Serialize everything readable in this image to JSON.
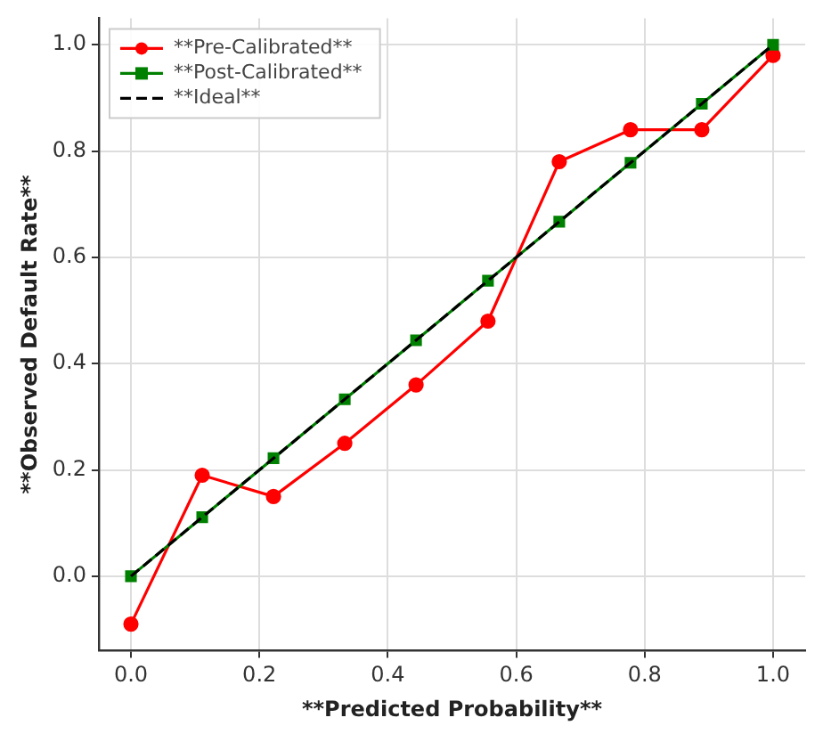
{
  "chart_data": {
    "type": "line",
    "xlabel": "**Predicted Probability**",
    "ylabel": "**Observed Default Rate**",
    "x": [
      0,
      0.111,
      0.222,
      0.333,
      0.444,
      0.556,
      0.667,
      0.778,
      0.889,
      1
    ],
    "series": [
      {
        "name": "**Pre-Calibrated**",
        "color": "#ff0000",
        "marker": "circle",
        "line_style": "solid",
        "values": [
          -0.09,
          0.19,
          0.15,
          0.25,
          0.36,
          0.48,
          0.78,
          0.84,
          0.84,
          0.98
        ]
      },
      {
        "name": "**Post-Calibrated**",
        "color": "#008000",
        "marker": "square",
        "line_style": "solid",
        "values": [
          0,
          0.111,
          0.222,
          0.333,
          0.444,
          0.556,
          0.667,
          0.778,
          0.889,
          1
        ]
      },
      {
        "name": "**Ideal**",
        "color": "#000000",
        "marker": "none",
        "line_style": "dashed",
        "x": [
          0,
          1
        ],
        "values": [
          0,
          1
        ]
      }
    ],
    "xlim": [
      -0.05,
      1.05
    ],
    "ylim": [
      -0.14,
      1.05
    ],
    "xticks": [
      {
        "value": 0,
        "label": "0.0"
      },
      {
        "value": 0.2,
        "label": "0.2"
      },
      {
        "value": 0.4,
        "label": "0.4"
      },
      {
        "value": 0.6,
        "label": "0.6"
      },
      {
        "value": 0.8,
        "label": "0.8"
      },
      {
        "value": 1,
        "label": "1.0"
      }
    ],
    "yticks": [
      {
        "value": 0,
        "label": "0.0"
      },
      {
        "value": 0.2,
        "label": "0.2"
      },
      {
        "value": 0.4,
        "label": "0.4"
      },
      {
        "value": 0.6,
        "label": "0.6"
      },
      {
        "value": 0.8,
        "label": "0.8"
      },
      {
        "value": 1,
        "label": "1.0"
      }
    ],
    "grid": true,
    "legend": "top left"
  }
}
